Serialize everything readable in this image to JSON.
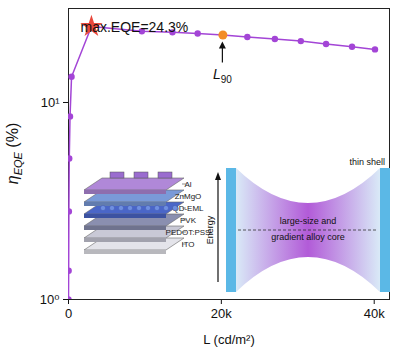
{
  "chart_data": {
    "type": "line",
    "xlabel": "L (cd/m²)",
    "ylabel": "ηEQE (%)",
    "x": [
      0,
      20,
      50,
      100,
      200,
      400,
      3000,
      9600,
      13600,
      16900,
      20200,
      23400,
      27000,
      30400,
      33700,
      37100,
      40100
    ],
    "series": [
      {
        "color": "#a345d6",
        "marker": "circle",
        "values": [
          1.0,
          1.4,
          2.8,
          5.2,
          8.5,
          13.5,
          24.3,
          23.0,
          22.7,
          22.4,
          22.0,
          21.5,
          21.0,
          20.5,
          19.8,
          19.2,
          18.6
        ]
      }
    ],
    "xlim": [
      0,
      42000
    ],
    "xticks": [
      0,
      {
        "value": 20000,
        "label": "20k"
      },
      {
        "value": 40000,
        "label": "40k"
      }
    ],
    "ylim": [
      1,
      30
    ],
    "yticks": [
      {
        "value": 1,
        "label": "10⁰"
      },
      {
        "value": 10,
        "label": "10¹"
      }
    ],
    "log": "y",
    "annotations": [
      {
        "text": "max.EQE=24.3%"
      }
    ],
    "highlights": [
      {
        "x": 3000,
        "y": 24.3,
        "marker": "star",
        "color": "#e8483c"
      },
      {
        "x": 20200,
        "y": 22.0,
        "marker": "circle",
        "color": "#f28c28",
        "label": "L90"
      }
    ],
    "inset": {
      "device_layers": [
        "Al",
        "ZnMgO",
        "QD-EML",
        "PVK",
        "PEDOT:PSS",
        "ITO"
      ],
      "energy_label": "Energy",
      "core_label": [
        "large-size and",
        "gradient alloy core"
      ],
      "shell_label": "thin shell"
    }
  }
}
